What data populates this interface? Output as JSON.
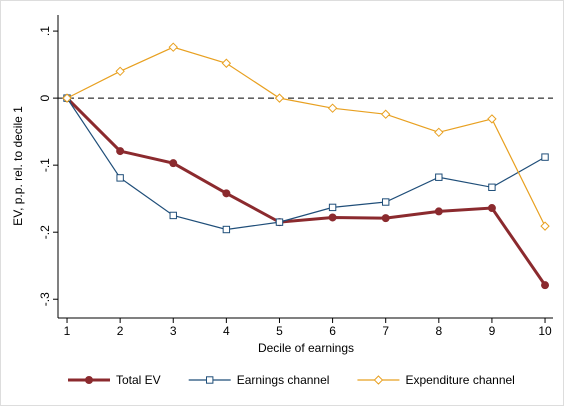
{
  "chart_data": {
    "type": "line",
    "x_label": "Decile of earnings",
    "y_label": "EV, p.p. rel. to decile 1",
    "x": [
      1,
      2,
      3,
      4,
      5,
      6,
      7,
      8,
      9,
      10
    ],
    "xlim": [
      0.83,
      10.15
    ],
    "xticks": [
      1,
      2,
      3,
      4,
      5,
      6,
      7,
      8,
      9,
      10
    ],
    "ylim": [
      -0.328,
      0.124
    ],
    "yticks": [
      {
        "value": -0.3,
        "label": "-.3"
      },
      {
        "value": -0.2,
        "label": "-.2"
      },
      {
        "value": -0.1,
        "label": "-.1"
      },
      0,
      {
        "value": 0.1,
        "label": ".1"
      }
    ],
    "reference_line": 0,
    "legend": "bottom",
    "series": [
      {
        "name": "Total EV",
        "color": "#8b2a2e",
        "marker": "circle",
        "values": [
          0,
          -0.079,
          -0.097,
          -0.142,
          -0.185,
          -0.178,
          -0.179,
          -0.169,
          -0.164,
          -0.279
        ]
      },
      {
        "name": "Earnings channel",
        "color": "#1f4e79",
        "marker": "square",
        "values": [
          0,
          -0.119,
          -0.175,
          -0.196,
          -0.185,
          -0.163,
          -0.155,
          -0.118,
          -0.133,
          -0.088
        ]
      },
      {
        "name": "Expenditure channel",
        "color": "#e8a020",
        "marker": "diamond",
        "values": [
          0,
          0.04,
          0.076,
          0.052,
          0,
          -0.015,
          -0.024,
          -0.051,
          -0.031,
          -0.191
        ]
      }
    ]
  }
}
